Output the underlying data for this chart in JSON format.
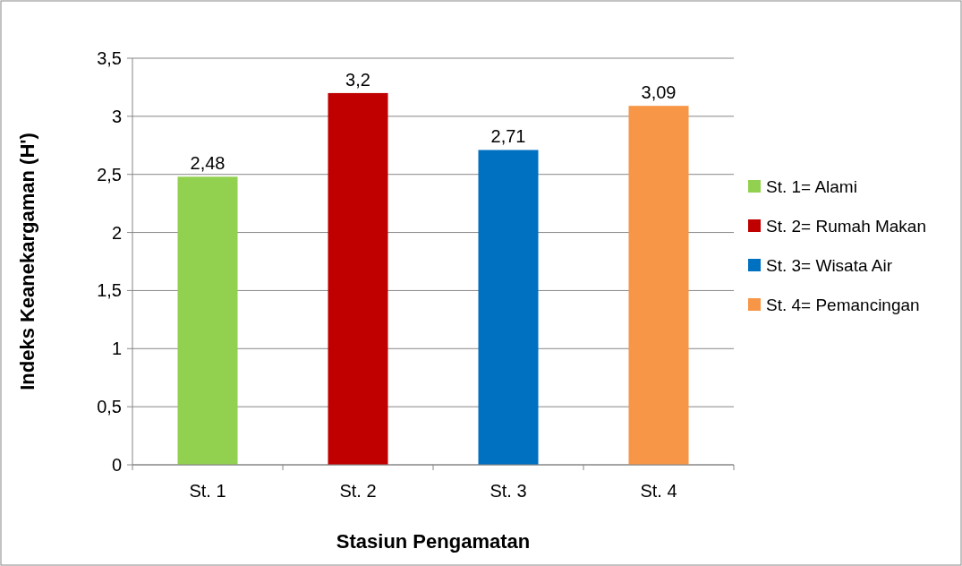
{
  "chart_data": {
    "type": "bar",
    "xlabel": "Stasiun Pengamatan",
    "ylabel": "Indeks Keanekargaman (H')",
    "categories": [
      "St. 1",
      "St. 2",
      "St. 3",
      "St. 4"
    ],
    "series": [
      {
        "name": "St. 1= Alami",
        "color": "#92d050",
        "values": [
          2.48,
          null,
          null,
          null
        ],
        "value_labels": [
          "2,48",
          null,
          null,
          null
        ]
      },
      {
        "name": "St. 2= Rumah Makan",
        "color": "#c00000",
        "values": [
          null,
          3.2,
          null,
          null
        ],
        "value_labels": [
          null,
          "3,2",
          null,
          null
        ]
      },
      {
        "name": "St. 3= Wisata Air",
        "color": "#0070c0",
        "values": [
          null,
          null,
          2.71,
          null
        ],
        "value_labels": [
          null,
          null,
          "2,71",
          null
        ]
      },
      {
        "name": "St. 4= Pemancingan",
        "color": "#f79646",
        "values": [
          null,
          null,
          null,
          3.09
        ],
        "value_labels": [
          null,
          null,
          null,
          "3,09"
        ]
      }
    ],
    "ylim": [
      0,
      3.5
    ],
    "yticks": [
      0,
      {
        "value": 0.5,
        "label": "0,5"
      },
      1,
      {
        "value": 1.5,
        "label": "1,5"
      },
      2,
      {
        "value": 2.5,
        "label": "2,5"
      },
      3,
      {
        "value": 3.5,
        "label": "3,5"
      }
    ],
    "grid": "y",
    "legend": "right"
  }
}
